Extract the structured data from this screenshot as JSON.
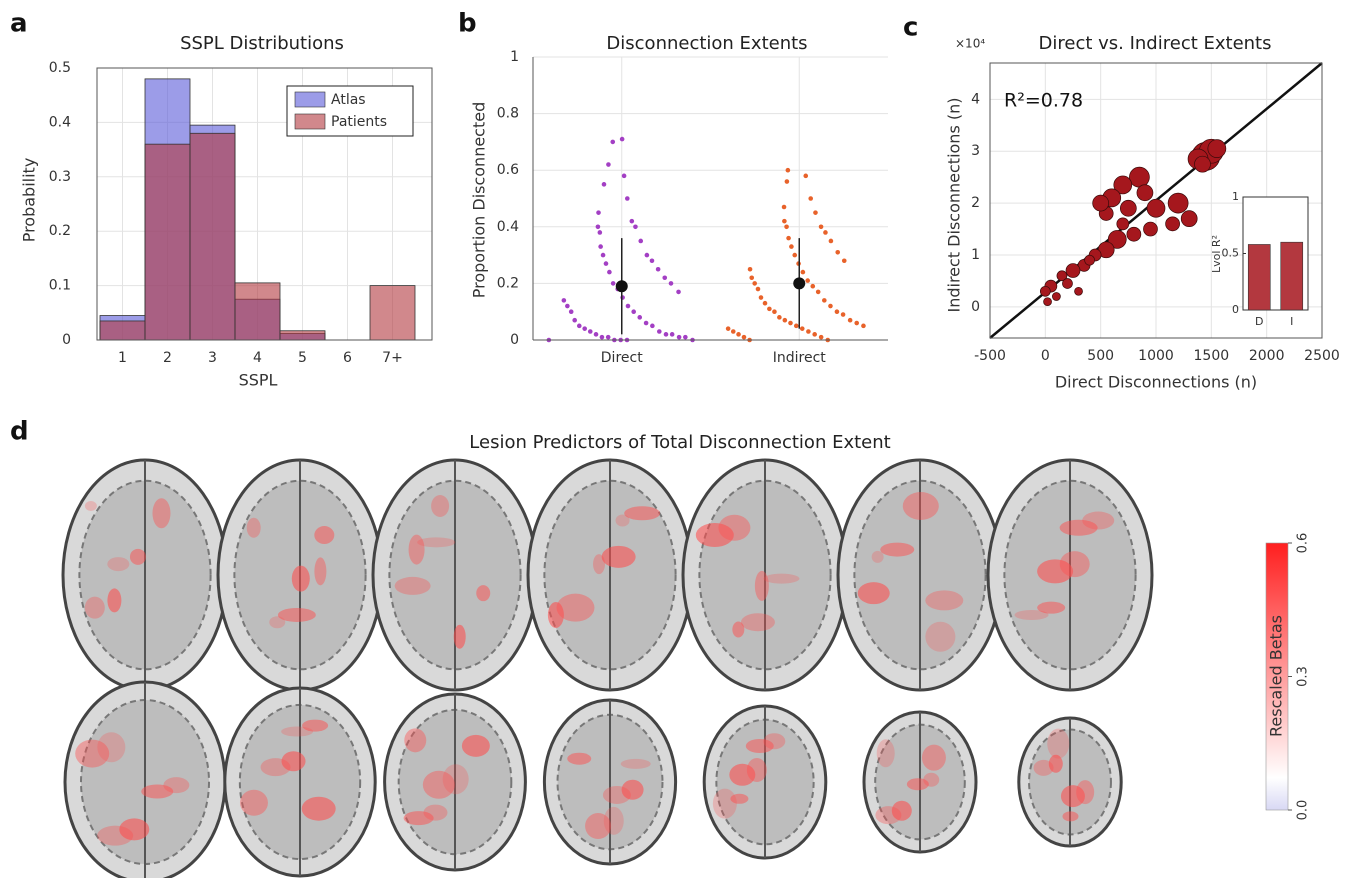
{
  "chart_data": [
    {
      "type": "bar",
      "panel": "a",
      "title": "SSPL Distributions",
      "xlabel": "SSPL",
      "ylabel": "Probability",
      "categories": [
        "1",
        "2",
        "3",
        "4",
        "5",
        "6",
        "7+"
      ],
      "series": [
        {
          "name": "Atlas",
          "color": "#5a5ad8",
          "values": [
            0.045,
            0.48,
            0.395,
            0.075,
            0.012,
            0,
            0
          ]
        },
        {
          "name": "Patients",
          "color": "#b3383f",
          "values": [
            0.035,
            0.36,
            0.38,
            0.105,
            0.017,
            0,
            0.1
          ]
        }
      ],
      "ylim": [
        0,
        0.5
      ],
      "yticks": [
        0,
        0.1,
        0.2,
        0.3,
        0.4,
        0.5
      ],
      "grid": true,
      "legend": "upper right"
    },
    {
      "type": "strip",
      "panel": "b",
      "title": "Disconnection Extents",
      "ylabel": "Proportion Disconnected",
      "categories": [
        "Direct",
        "Indirect"
      ],
      "groups": [
        {
          "color": "#a33fc4",
          "mean": 0.19,
          "sd": 0.17,
          "values": [
            0.7,
            0.71,
            0.62,
            0.58,
            0.55,
            0.5,
            0.45,
            0.42,
            0.4,
            0.4,
            0.38,
            0.35,
            0.33,
            0.3,
            0.3,
            0.28,
            0.27,
            0.25,
            0.24,
            0.22,
            0.2,
            0.2,
            0.18,
            0.17,
            0.15,
            0.14,
            0.12,
            0.12,
            0.1,
            0.1,
            0.08,
            0.07,
            0.06,
            0.05,
            0.05,
            0.04,
            0.03,
            0.03,
            0.02,
            0.02,
            0.02,
            0.01,
            0.01,
            0.01,
            0.01,
            0,
            0,
            0,
            0,
            0
          ]
        },
        {
          "color": "#e8622a",
          "mean": 0.2,
          "sd": 0.16,
          "values": [
            0.6,
            0.58,
            0.56,
            0.5,
            0.47,
            0.45,
            0.42,
            0.4,
            0.4,
            0.38,
            0.36,
            0.35,
            0.33,
            0.31,
            0.3,
            0.28,
            0.27,
            0.25,
            0.24,
            0.22,
            0.21,
            0.2,
            0.19,
            0.18,
            0.17,
            0.15,
            0.14,
            0.13,
            0.12,
            0.11,
            0.1,
            0.1,
            0.09,
            0.08,
            0.07,
            0.07,
            0.06,
            0.06,
            0.05,
            0.05,
            0.04,
            0.04,
            0.03,
            0.03,
            0.02,
            0.02,
            0.01,
            0.01,
            0,
            0
          ]
        }
      ],
      "ylim": [
        0,
        1
      ],
      "yticks": [
        0,
        0.2,
        0.4,
        0.6,
        0.8,
        1
      ],
      "grid": true
    },
    {
      "type": "scatter",
      "panel": "c",
      "title": "Direct vs. Indirect Extents",
      "xlabel": "Direct Disconnections (n)",
      "ylabel": "Indirect Disconnections (n)",
      "y_multiplier": "×10⁴",
      "annotation": "R²=0.78",
      "color": "#a5171d",
      "x": [
        1450,
        1500,
        1380,
        1550,
        1420,
        850,
        900,
        700,
        600,
        750,
        550,
        500,
        1000,
        1200,
        1300,
        1150,
        950,
        650,
        550,
        450,
        800,
        350,
        250,
        150,
        50,
        0,
        20,
        100,
        200,
        300,
        400,
        700
      ],
      "y": [
        2.9,
        3.0,
        2.85,
        3.05,
        2.75,
        2.5,
        2.2,
        2.35,
        2.1,
        1.9,
        1.8,
        2.0,
        1.9,
        2.0,
        1.7,
        1.6,
        1.5,
        1.3,
        1.1,
        1.0,
        1.4,
        0.8,
        0.7,
        0.6,
        0.4,
        0.3,
        0.1,
        0.2,
        0.45,
        0.3,
        0.9,
        1.6
      ],
      "size": [
        14,
        12,
        10,
        9,
        8,
        10,
        8,
        9,
        9,
        8,
        7,
        8,
        9,
        10,
        8,
        7,
        7,
        9,
        8,
        6,
        7,
        6,
        7,
        5,
        6,
        5,
        4,
        4,
        5,
        4,
        5,
        6
      ],
      "fit_x": [
        -500,
        2500
      ],
      "fit_y": [
        -0.6,
        4.7
      ],
      "xlim": [
        -500,
        2500
      ],
      "xticks": [
        -500,
        0,
        500,
        1000,
        1500,
        2000,
        2500
      ],
      "ylim": [
        -0.6,
        4.7
      ],
      "yticks": [
        0,
        1,
        2,
        3,
        4
      ],
      "grid": true,
      "inset": {
        "type": "bar",
        "ylabel": "Lvol R²",
        "categories": [
          "D",
          "I"
        ],
        "values": [
          0.58,
          0.6
        ],
        "color": "#b3383f",
        "ylim": [
          0,
          1
        ],
        "yticks": [
          0,
          0.5,
          1
        ]
      }
    },
    {
      "type": "brain-map",
      "panel": "d",
      "title": "Lesion Predictors of Total Disconnection Extent",
      "colorbar_label": "Rescaled Betas",
      "clim": [
        0,
        0.6
      ],
      "cticks": [
        {
          "value": 0,
          "label": "0.0"
        },
        0.3,
        0.6
      ]
    }
  ]
}
